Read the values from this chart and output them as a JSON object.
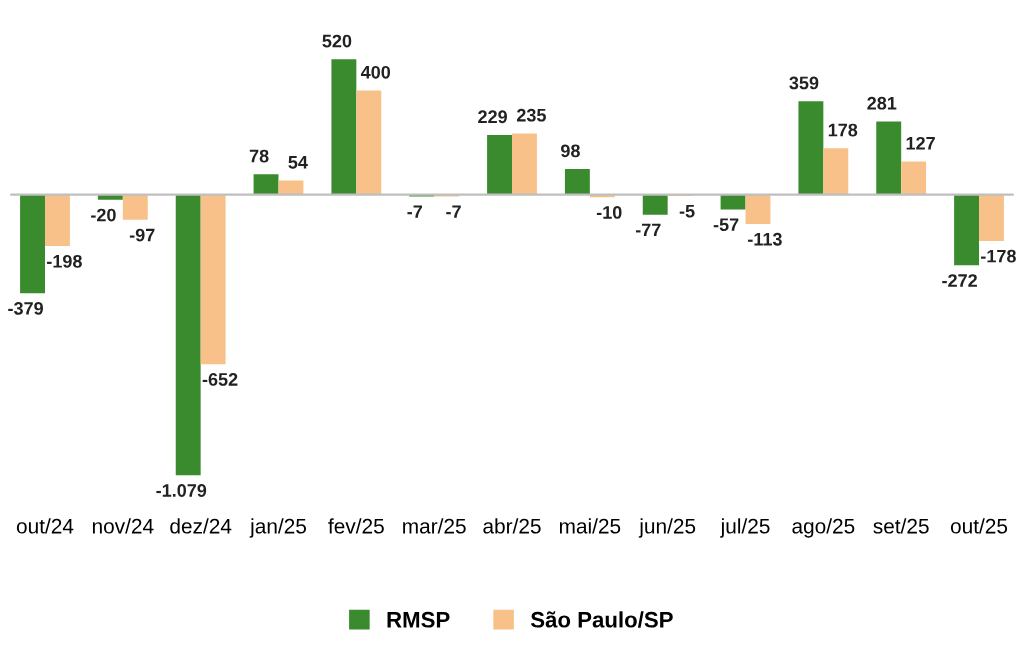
{
  "chart_data": {
    "type": "bar",
    "categories": [
      "out/24",
      "nov/24",
      "dez/24",
      "jan/25",
      "fev/25",
      "mar/25",
      "abr/25",
      "mai/25",
      "jun/25",
      "jul/25",
      "ago/25",
      "set/25",
      "out/25"
    ],
    "series": [
      {
        "name": "RMSP",
        "color": "#3a8a2e",
        "values": [
          -379,
          -20,
          -1079,
          78,
          520,
          -7,
          229,
          98,
          -77,
          -57,
          359,
          281,
          -272
        ],
        "value_labels": [
          "-379",
          "-20",
          "-1.079",
          "78",
          "520",
          "-7",
          "229",
          "98",
          "-77",
          "-57",
          "359",
          "281",
          "-272"
        ]
      },
      {
        "name": "São Paulo/SP",
        "color": "#f7c189",
        "values": [
          -198,
          -97,
          -652,
          54,
          400,
          -7,
          235,
          -10,
          -5,
          -113,
          178,
          127,
          -178
        ],
        "value_labels": [
          "-198",
          "-97",
          "-652",
          "54",
          "400",
          "-7",
          "235",
          "-10",
          "-5",
          "-113",
          "178",
          "127",
          "-178"
        ]
      }
    ],
    "legend": "bottom",
    "grid": false
  }
}
